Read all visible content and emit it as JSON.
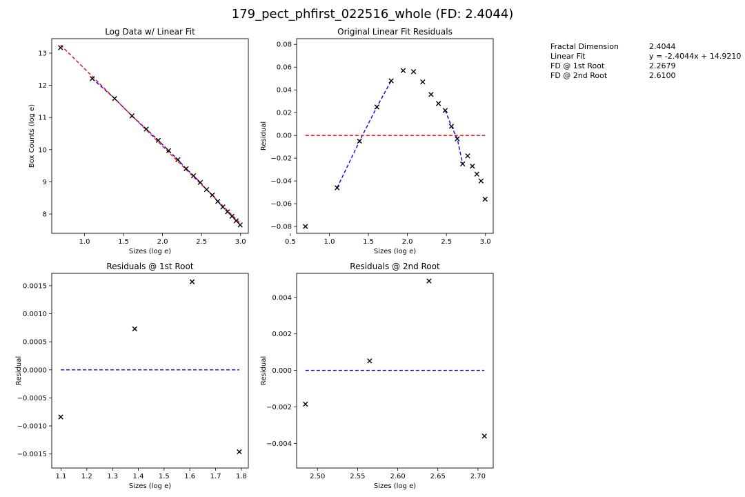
{
  "figure": {
    "suptitle": "179_pect_phfirst_022516_whole (FD: 2.4044)"
  },
  "info_table": [
    {
      "label": "Fractal Dimension",
      "value": "2.4044"
    },
    {
      "label": "Linear Fit",
      "value": "y = -2.4044x + 14.9210"
    },
    {
      "label": "FD @ 1st Root",
      "value": "2.2679"
    },
    {
      "label": "FD @ 2nd Root",
      "value": "2.6100"
    }
  ],
  "chart_data": [
    {
      "type": "scatter",
      "title": "Log Data w/ Linear Fit",
      "xlabel": "Sizes (log e)",
      "ylabel": "Box Counts (log e)",
      "xlim": [
        0.58,
        3.1
      ],
      "ylim": [
        7.4,
        13.45
      ],
      "xticks": [
        "1.0",
        "1.5",
        "2.0",
        "2.5",
        "3.0"
      ],
      "xtick_values": [
        1.0,
        1.5,
        2.0,
        2.5,
        3.0
      ],
      "yticks": [
        "8",
        "9",
        "10",
        "11",
        "12",
        "13"
      ],
      "ytick_values": [
        8,
        9,
        10,
        11,
        12,
        13
      ],
      "series": [
        {
          "kind": "points",
          "marker": "x",
          "color": "#000000",
          "x": [
            0.693,
            1.099,
            1.386,
            1.609,
            1.792,
            1.946,
            2.079,
            2.197,
            2.303,
            2.398,
            2.485,
            2.565,
            2.639,
            2.708,
            2.773,
            2.833,
            2.89,
            2.944,
            2.996
          ],
          "y": [
            13.17,
            12.21,
            11.59,
            11.05,
            10.64,
            10.29,
            9.97,
            9.69,
            9.41,
            9.19,
            8.98,
            8.76,
            8.59,
            8.39,
            8.22,
            8.07,
            7.93,
            7.79,
            7.66
          ]
        },
        {
          "kind": "line",
          "dash": true,
          "color": "#0000ff",
          "x": [
            1.099,
            1.386,
            1.609,
            1.792,
            1.946,
            2.079,
            2.197,
            2.303,
            2.398,
            2.485,
            2.565,
            2.639,
            2.708,
            2.773,
            2.833,
            2.89,
            2.944,
            2.996
          ],
          "y": [
            12.21,
            11.59,
            11.05,
            10.64,
            10.29,
            9.97,
            9.69,
            9.41,
            9.19,
            8.98,
            8.76,
            8.59,
            8.39,
            8.22,
            8.07,
            7.93,
            7.79,
            7.66
          ]
        },
        {
          "kind": "line",
          "dash": true,
          "color": "#ff0000",
          "x": [
            0.693,
            2.996
          ],
          "y": [
            13.255,
            7.716
          ]
        }
      ]
    },
    {
      "type": "scatter",
      "title": "Original Linear Fit Residuals",
      "xlabel": "Sizes (log e)",
      "ylabel": "Residual",
      "xlim": [
        0.58,
        3.1
      ],
      "ylim": [
        -0.086,
        0.085
      ],
      "xticks": [
        "0.5",
        "1.0",
        "1.5",
        "2.0",
        "2.5",
        "3.0"
      ],
      "xtick_values": [
        0.5,
        1.0,
        1.5,
        2.0,
        2.5,
        3.0
      ],
      "yticks": [
        "−0.08",
        "−0.06",
        "−0.04",
        "−0.02",
        "0.00",
        "0.02",
        "0.04",
        "0.06",
        "0.08"
      ],
      "ytick_values": [
        -0.08,
        -0.06,
        -0.04,
        -0.02,
        0.0,
        0.02,
        0.04,
        0.06,
        0.08
      ],
      "series": [
        {
          "kind": "points",
          "marker": "x",
          "color": "#000000",
          "x": [
            0.693,
            1.099,
            1.386,
            1.609,
            1.792,
            1.946,
            2.079,
            2.197,
            2.303,
            2.398,
            2.485,
            2.565,
            2.639,
            2.708,
            2.773,
            2.833,
            2.89,
            2.944,
            2.996
          ],
          "y": [
            -0.08,
            -0.046,
            -0.005,
            0.025,
            0.048,
            0.057,
            0.056,
            0.047,
            0.036,
            0.028,
            0.022,
            0.008,
            -0.003,
            -0.025,
            -0.018,
            -0.027,
            -0.034,
            -0.04,
            -0.056
          ]
        },
        {
          "kind": "line",
          "dash": true,
          "color": "#0000ff",
          "x": [
            1.099,
            1.386,
            1.609,
            1.792
          ],
          "y": [
            -0.046,
            -0.005,
            0.025,
            0.048
          ]
        },
        {
          "kind": "line",
          "dash": true,
          "color": "#0000ff",
          "x": [
            2.485,
            2.565,
            2.639,
            2.708
          ],
          "y": [
            0.022,
            0.008,
            -0.003,
            -0.025
          ]
        },
        {
          "kind": "line",
          "dash": true,
          "color": "#ff0000",
          "x": [
            0.693,
            2.996
          ],
          "y": [
            0.0,
            0.0
          ]
        }
      ]
    },
    {
      "type": "scatter",
      "title": "Residuals @ 1st Root",
      "xlabel": "Sizes (log e)",
      "ylabel": "Residual",
      "xlim": [
        1.064,
        1.827
      ],
      "ylim": [
        -0.00175,
        0.00172
      ],
      "xticks": [
        "1.1",
        "1.2",
        "1.3",
        "1.4",
        "1.5",
        "1.6",
        "1.7",
        "1.8"
      ],
      "xtick_values": [
        1.1,
        1.2,
        1.3,
        1.4,
        1.5,
        1.6,
        1.7,
        1.8
      ],
      "yticks": [
        "−0.0015",
        "−0.0010",
        "−0.0005",
        "0.0000",
        "0.0005",
        "0.0010",
        "0.0015"
      ],
      "ytick_values": [
        -0.0015,
        -0.001,
        -0.0005,
        0.0,
        0.0005,
        0.001,
        0.0015
      ],
      "series": [
        {
          "kind": "points",
          "marker": "x",
          "color": "#000000",
          "x": [
            1.099,
            1.386,
            1.609,
            1.792
          ],
          "y": [
            -0.00084,
            0.00073,
            0.00157,
            -0.00146
          ]
        },
        {
          "kind": "line",
          "dash": true,
          "color": "#0000ff",
          "x": [
            1.099,
            1.792
          ],
          "y": [
            0.0,
            0.0
          ]
        }
      ]
    },
    {
      "type": "scatter",
      "title": "Residuals @ 2nd Root",
      "xlabel": "Sizes (log e)",
      "ylabel": "Residual",
      "xlim": [
        2.474,
        2.719
      ],
      "ylim": [
        -0.00535,
        0.00532
      ],
      "xticks": [
        "2.50",
        "2.55",
        "2.60",
        "2.65",
        "2.70"
      ],
      "xtick_values": [
        2.5,
        2.55,
        2.6,
        2.65,
        2.7
      ],
      "yticks": [
        "−0.004",
        "−0.002",
        "0.000",
        "0.002",
        "0.004"
      ],
      "ytick_values": [
        -0.004,
        -0.002,
        0.0,
        0.002,
        0.004
      ],
      "series": [
        {
          "kind": "points",
          "marker": "x",
          "color": "#000000",
          "x": [
            2.485,
            2.565,
            2.639,
            2.708
          ],
          "y": [
            -0.00185,
            0.00052,
            0.0049,
            -0.0036
          ]
        },
        {
          "kind": "line",
          "dash": true,
          "color": "#0000ff",
          "x": [
            2.485,
            2.708
          ],
          "y": [
            0.0,
            0.0
          ]
        }
      ]
    }
  ]
}
